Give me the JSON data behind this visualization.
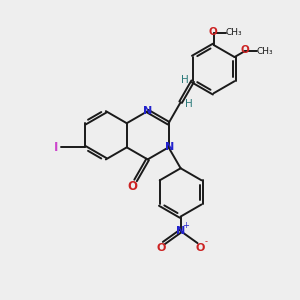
{
  "bg_color": "#eeeeee",
  "bond_color": "#1a1a1a",
  "N_color": "#2222cc",
  "O_color": "#cc2222",
  "I_color": "#cc44cc",
  "H_color": "#2a7a7a",
  "xlim": [
    0,
    10
  ],
  "ylim": [
    0,
    10
  ]
}
